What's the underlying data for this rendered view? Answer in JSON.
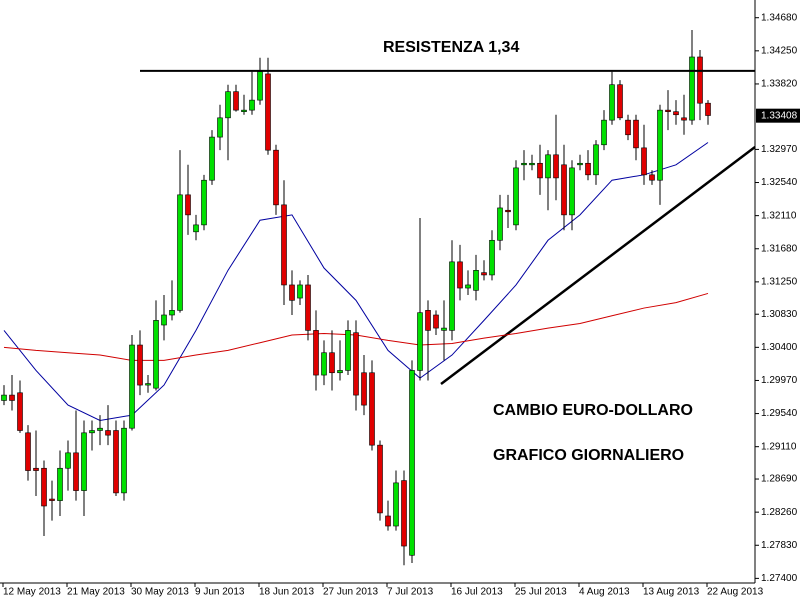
{
  "chart_data": {
    "type": "candlestick",
    "categories": [
      "12 May 2013",
      null,
      null,
      null,
      null,
      null,
      null,
      null,
      "21 May 2013",
      null,
      null,
      null,
      null,
      null,
      null,
      null,
      "30 May 2013",
      null,
      null,
      null,
      null,
      null,
      null,
      null,
      "9 Jun 2013",
      null,
      null,
      null,
      null,
      null,
      null,
      null,
      "18 Jun 2013",
      null,
      null,
      null,
      null,
      null,
      null,
      null,
      "27 Jun 2013",
      null,
      null,
      null,
      null,
      null,
      null,
      null,
      "7 Jul 2013",
      null,
      null,
      null,
      null,
      null,
      null,
      null,
      "16 Jul 2013",
      null,
      null,
      null,
      null,
      null,
      null,
      null,
      "25 Jul 2013",
      null,
      null,
      null,
      null,
      null,
      null,
      null,
      "4 Aug 2013",
      null,
      null,
      null,
      null,
      null,
      null,
      null,
      "13 Aug 2013",
      null,
      null,
      null,
      null,
      null,
      null,
      null,
      "22 Aug 2013"
    ],
    "open": [
      1.2971,
      1.2978,
      1.2981,
      1.2929,
      1.2883,
      1.2883,
      1.2843,
      1.2841,
      1.2883,
      1.2903,
      1.2854,
      1.2929,
      1.2932,
      1.2932,
      1.2932,
      1.2851,
      1.2935,
      1.3043,
      1.2991,
      1.2987,
      1.3069,
      1.3082,
      1.3088,
      1.3238,
      1.319,
      1.3199,
      1.3257,
      1.3313,
      1.3338,
      1.3372,
      1.3346,
      1.3348,
      1.3361,
      1.3395,
      1.3296,
      1.3225,
      1.3121,
      1.3104,
      1.3121,
      1.3062,
      1.3004,
      1.3033,
      1.3007,
      1.301,
      1.3059,
      1.3007,
      1.3007,
      1.2913,
      1.2821,
      1.2808,
      1.2867,
      1.277,
      1.301,
      1.3088,
      1.3082,
      1.3062,
      1.3062,
      1.3151,
      1.3117,
      1.3114,
      1.3137,
      1.3134,
      1.3179,
      1.3218,
      1.3199,
      1.3277,
      1.3277,
      1.3279,
      1.326,
      1.329,
      1.3277,
      1.3212,
      1.3277,
      1.3279,
      1.3264,
      1.3303,
      1.3335,
      1.3381,
      1.3335,
      1.3335,
      1.3299,
      1.3264,
      1.3257,
      1.3348,
      1.3346,
      1.3338,
      1.3335,
      1.3417,
      1.3357
    ],
    "high": [
      1.2991,
      1.3004,
      1.2997,
      1.2939,
      1.2932,
      1.2893,
      1.2867,
      1.2906,
      1.2919,
      1.2958,
      1.2945,
      1.2945,
      1.2952,
      1.2965,
      1.2945,
      1.2945,
      1.3056,
      1.3062,
      1.3004,
      1.3101,
      1.3108,
      1.3127,
      1.3296,
      1.3277,
      1.3212,
      1.3264,
      1.3322,
      1.3355,
      1.3381,
      1.3381,
      1.3368,
      1.3398,
      1.3416,
      1.3416,
      1.3303,
      1.3257,
      1.314,
      1.3127,
      1.3134,
      1.3088,
      1.3049,
      1.3062,
      1.3049,
      1.3075,
      1.3075,
      1.303,
      1.3023,
      1.2919,
      1.2841,
      1.288,
      1.288,
      1.3023,
      1.3208,
      1.3101,
      1.3088,
      1.3101,
      1.3179,
      1.3173,
      1.314,
      1.316,
      1.3153,
      1.3192,
      1.3238,
      1.3238,
      1.3283,
      1.3296,
      1.329,
      1.3303,
      1.3296,
      1.3342,
      1.3303,
      1.3283,
      1.329,
      1.3296,
      1.3309,
      1.3348,
      1.3398,
      1.3387,
      1.3342,
      1.3342,
      1.3329,
      1.327,
      1.3355,
      1.3374,
      1.3361,
      1.3368,
      1.3452,
      1.3426,
      1.3361
    ],
    "low": [
      1.2965,
      1.2958,
      1.2929,
      1.2867,
      1.2847,
      1.2795,
      1.2815,
      1.2821,
      1.2854,
      1.2841,
      1.2821,
      1.2906,
      1.2913,
      1.2913,
      1.2847,
      1.2841,
      1.2932,
      1.2978,
      1.2981,
      1.2984,
      1.3049,
      1.3075,
      1.3085,
      1.3186,
      1.3179,
      1.3192,
      1.3251,
      1.3296,
      1.3283,
      1.3346,
      1.3342,
      1.3342,
      1.3355,
      1.329,
      1.3212,
      1.3095,
      1.3082,
      1.3095,
      1.3049,
      1.2984,
      1.2991,
      1.2984,
      1.2997,
      1.3004,
      1.2958,
      1.2952,
      1.2906,
      1.2815,
      1.2802,
      1.2802,
      1.2757,
      1.276,
      1.2997,
      1.2997,
      1.3056,
      1.3023,
      1.3049,
      1.3101,
      1.3108,
      1.3101,
      1.3127,
      1.3127,
      1.3166,
      1.3195,
      1.3192,
      1.3257,
      1.327,
      1.3238,
      1.3218,
      1.3231,
      1.3192,
      1.3192,
      1.327,
      1.3257,
      1.3251,
      1.3296,
      1.3329,
      1.3335,
      1.3309,
      1.3283,
      1.3251,
      1.3251,
      1.3225,
      1.3322,
      1.3329,
      1.3316,
      1.3329,
      1.3335,
      1.3329
    ],
    "close": [
      1.2978,
      1.2971,
      1.2932,
      1.288,
      1.288,
      1.2834,
      1.2841,
      1.2883,
      1.2903,
      1.2854,
      1.2929,
      1.2932,
      1.2935,
      1.2926,
      1.2851,
      1.2935,
      1.3043,
      1.2991,
      1.2993,
      1.3075,
      1.3082,
      1.3088,
      1.3238,
      1.3212,
      1.3199,
      1.3257,
      1.3313,
      1.3338,
      1.3372,
      1.3348,
      1.3348,
      1.3361,
      1.3398,
      1.3296,
      1.3225,
      1.3121,
      1.3101,
      1.3121,
      1.3062,
      1.3004,
      1.3033,
      1.3007,
      1.301,
      1.3062,
      1.2978,
      1.2965,
      1.2913,
      1.2825,
      1.2808,
      1.2864,
      1.2782,
      1.301,
      1.3085,
      1.3062,
      1.3065,
      1.3065,
      1.3151,
      1.3117,
      1.3121,
      1.314,
      1.3134,
      1.3179,
      1.3221,
      1.3216,
      1.3273,
      1.3279,
      1.3279,
      1.326,
      1.329,
      1.326,
      1.3212,
      1.3273,
      1.3279,
      1.3264,
      1.3303,
      1.3335,
      1.3381,
      1.3338,
      1.3316,
      1.3299,
      1.3264,
      1.3257,
      1.3348,
      1.3346,
      1.3342,
      1.3335,
      1.3417,
      1.3357,
      1.3341
    ],
    "up_color": "#00e000",
    "down_color": "#e00000",
    "wick_color": "#000000",
    "indicators": [
      {
        "color": "#0000a0",
        "x": [
          0,
          4,
          8,
          12,
          16,
          20,
          24,
          28,
          32,
          36,
          40,
          44,
          48,
          52,
          56,
          60,
          64,
          68,
          72,
          76,
          80,
          84,
          88
        ],
        "values": [
          1.3062,
          1.301,
          1.2965,
          1.2945,
          1.2952,
          1.2991,
          1.3062,
          1.314,
          1.3205,
          1.3212,
          1.3143,
          1.3101,
          1.3036,
          1.3,
          1.303,
          1.3075,
          1.3121,
          1.3179,
          1.3212,
          1.3257,
          1.3264,
          1.3277,
          1.3306
        ]
      },
      {
        "color": "#d00000",
        "x": [
          0,
          4,
          8,
          12,
          16,
          20,
          24,
          28,
          32,
          36,
          40,
          44,
          48,
          52,
          56,
          60,
          64,
          68,
          72,
          76,
          80,
          84,
          88
        ],
        "values": [
          1.304,
          1.3036,
          1.3033,
          1.303,
          1.3023,
          1.3023,
          1.303,
          1.3036,
          1.3046,
          1.3056,
          1.3058,
          1.3056,
          1.3049,
          1.3043,
          1.3045,
          1.3052,
          1.3058,
          1.3065,
          1.3071,
          1.3081,
          1.3091,
          1.3098,
          1.311
        ]
      }
    ],
    "ylim": [
      1.2734,
      1.3491
    ],
    "yticks": [
      {
        "value": 1.3468,
        "label": "1.34680"
      },
      {
        "value": 1.3425,
        "label": "1.34250"
      },
      {
        "value": 1.3382,
        "label": "1.33820"
      },
      {
        "value": 1.3297,
        "label": "1.32970"
      },
      {
        "value": 1.3254,
        "label": "1.32540"
      },
      {
        "value": 1.3211,
        "label": "1.32110"
      },
      {
        "value": 1.3168,
        "label": "1.31680"
      },
      {
        "value": 1.3125,
        "label": "1.31250"
      },
      {
        "value": 1.3083,
        "label": "1.30830"
      },
      {
        "value": 1.304,
        "label": "1.30400"
      },
      {
        "value": 1.2997,
        "label": "1.29970"
      },
      {
        "value": 1.2954,
        "label": "1.29540"
      },
      {
        "value": 1.2911,
        "label": "1.29110"
      },
      {
        "value": 1.2869,
        "label": "1.28690"
      },
      {
        "value": 1.2826,
        "label": "1.28260"
      },
      {
        "value": 1.2783,
        "label": "1.27830"
      },
      {
        "value": 1.274,
        "label": "1.27400"
      }
    ],
    "current_price": 1.33408,
    "resistance_level": 1.3399,
    "annotations": [
      "RESISTENZA 1,34",
      "CAMBIO EURO-DOLLARO",
      "GRAFICO GIORNALIERO"
    ]
  }
}
